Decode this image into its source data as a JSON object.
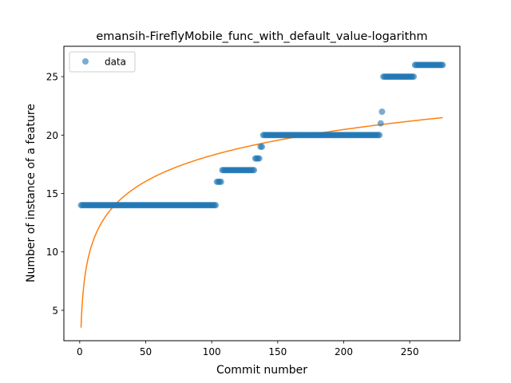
{
  "chart_data": {
    "type": "scatter",
    "title": "emansih-FireflyMobile_func_with_default_value-logarithm",
    "xlabel": "Commit number",
    "ylabel": "Number of instance of a feature",
    "xlim": [
      -12,
      288
    ],
    "ylim": [
      2.4,
      27.6
    ],
    "xticks": [
      0,
      50,
      100,
      150,
      200,
      250
    ],
    "yticks": [
      5,
      10,
      15,
      20,
      25
    ],
    "legend": {
      "position": "top-left",
      "entries": [
        "data"
      ]
    },
    "colors": {
      "data": "#1f77b4",
      "fit": "#ff7f0e"
    },
    "series": [
      {
        "name": "data",
        "kind": "scatter",
        "segments": [
          {
            "x_start": 1,
            "x_end": 103,
            "y": 14
          },
          {
            "x_start": 104,
            "x_end": 107,
            "y": 16
          },
          {
            "x_start": 108,
            "x_end": 132,
            "y": 17
          },
          {
            "x_start": 133,
            "x_end": 136,
            "y": 18
          },
          {
            "x_start": 137,
            "x_end": 138,
            "y": 19
          },
          {
            "x_start": 139,
            "x_end": 227,
            "y": 20
          },
          {
            "x_start": 228,
            "x_end": 228,
            "y": 21
          },
          {
            "x_start": 229,
            "x_end": 229,
            "y": 22
          },
          {
            "x_start": 230,
            "x_end": 253,
            "y": 25
          },
          {
            "x_start": 254,
            "x_end": 275,
            "y": 26
          }
        ]
      },
      {
        "name": "logarithmic fit",
        "kind": "line",
        "formula": "y = a + b*ln(x)",
        "a": 3.52,
        "b": 3.2,
        "x_start": 1,
        "x_end": 275
      }
    ]
  }
}
